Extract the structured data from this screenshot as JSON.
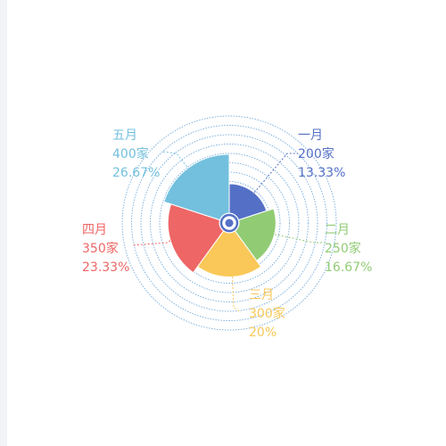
{
  "chart_data": {
    "type": "pie",
    "variant": "nightingale-rose",
    "unit": "家",
    "categories": [
      "一月",
      "二月",
      "三月",
      "四月",
      "五月"
    ],
    "values": [
      200,
      250,
      300,
      350,
      400
    ],
    "percent_labels": [
      "13.33%",
      "16.67%",
      "20%",
      "23.33%",
      "26.67%"
    ],
    "colors": [
      "#5470c6",
      "#91cc75",
      "#fac858",
      "#ee6666",
      "#73c0de"
    ],
    "legend": "none",
    "background_rings": 9,
    "ring_color": "#5b9bd5"
  }
}
